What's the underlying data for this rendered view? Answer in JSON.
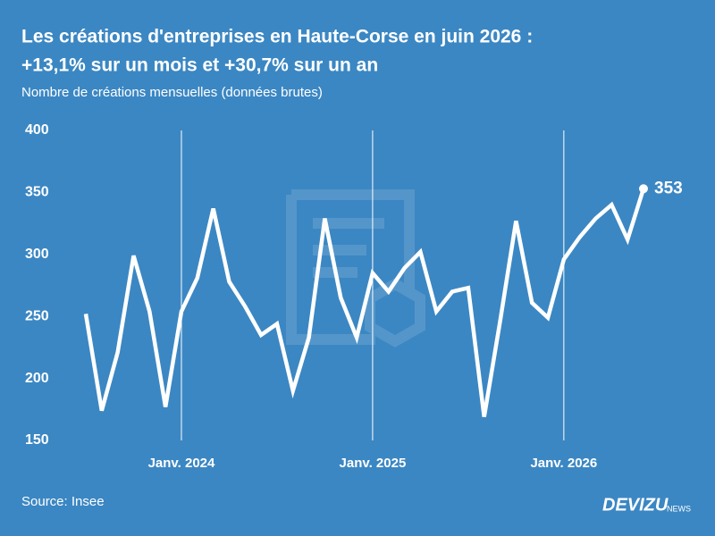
{
  "chart_data": {
    "type": "line",
    "title": "Les créations d'entreprises en Haute-Corse en juin 2026 :",
    "title_line2": "+13,1% sur un mois et +30,7% sur un an",
    "subtitle": "Nombre de créations mensuelles (données brutes)",
    "source": "Source: Insee",
    "brand": "DEVIZU",
    "brand_suffix": "NEWS",
    "categories": [
      null,
      null,
      null,
      null,
      null,
      null,
      "Janv. 2024",
      null,
      null,
      null,
      null,
      null,
      null,
      null,
      null,
      null,
      null,
      null,
      "Janv. 2025",
      null,
      null,
      null,
      null,
      null,
      null,
      null,
      null,
      null,
      null,
      null,
      "Janv. 2026",
      null,
      null,
      null,
      null,
      null
    ],
    "values": [
      252,
      174,
      221,
      299,
      254,
      177,
      254,
      281,
      337,
      278,
      258,
      235,
      244,
      190,
      233,
      329,
      265,
      233,
      285,
      270,
      289,
      302,
      254,
      270,
      273,
      169,
      246,
      327,
      261,
      249,
      296,
      314,
      329,
      340,
      312,
      353
    ],
    "color": "#ffffff",
    "ylim": [
      150,
      400
    ],
    "yticks": [
      150,
      200,
      250,
      300,
      350,
      400
    ],
    "grid": true
  }
}
